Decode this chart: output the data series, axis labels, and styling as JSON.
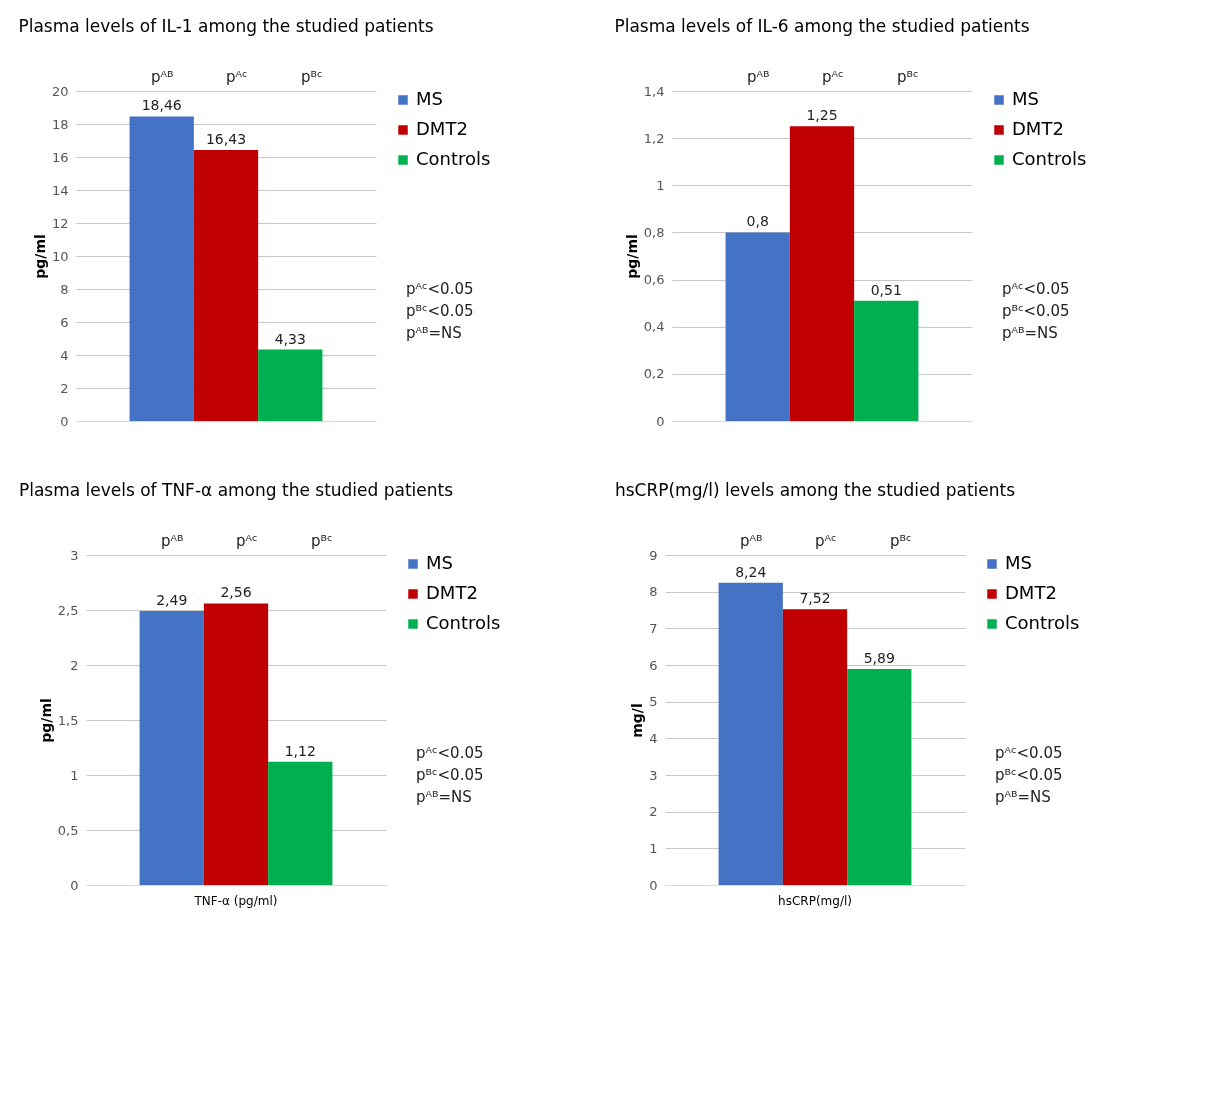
{
  "chart_data": [
    {
      "type": "bar",
      "title": "Plasma levels of IL-1 among the studied patients",
      "ylabel": "pg/ml",
      "categories": [
        null
      ],
      "series": [
        {
          "name": "MS",
          "color": "#4472c4",
          "values": [
            18.46
          ],
          "value_labels": [
            "18,46"
          ]
        },
        {
          "name": "DMT2",
          "color": "#c00000",
          "values": [
            16.43
          ],
          "value_labels": [
            "16,43"
          ]
        },
        {
          "name": "Controls",
          "color": "#00b050",
          "values": [
            4.33
          ],
          "value_labels": [
            "4,33"
          ]
        }
      ],
      "ylim": [
        0,
        20
      ],
      "yticks": [
        0,
        2,
        4,
        6,
        8,
        10,
        12,
        14,
        16,
        18,
        20
      ],
      "grid": "y",
      "legend": "right",
      "annotations": [
        "pᴬᴮ",
        "pᴬᶜ",
        "pᴮᶜ",
        "pᴬᶜ<0.05",
        "pᴮᶜ<0.05",
        "pᴬᴮ=NS"
      ]
    },
    {
      "type": "bar",
      "title": "Plasma levels of IL-6 among the studied patients",
      "ylabel": "pg/ml",
      "categories": [
        null
      ],
      "series": [
        {
          "name": "MS",
          "color": "#4472c4",
          "values": [
            0.8
          ],
          "value_labels": [
            "0,8"
          ]
        },
        {
          "name": "DMT2",
          "color": "#c00000",
          "values": [
            1.25
          ],
          "value_labels": [
            "1,25"
          ]
        },
        {
          "name": "Controls",
          "color": "#00b050",
          "values": [
            0.51
          ],
          "value_labels": [
            "0,51"
          ]
        }
      ],
      "ylim": [
        0,
        1.4
      ],
      "yticks": [
        0,
        {
          "value": 0.2,
          "label": "0,2"
        },
        {
          "value": 0.4,
          "label": "0,4"
        },
        {
          "value": 0.6,
          "label": "0,6"
        },
        {
          "value": 0.8,
          "label": "0,8"
        },
        1,
        {
          "value": 1.2,
          "label": "1,2"
        },
        {
          "value": 1.4,
          "label": "1,4"
        }
      ],
      "grid": "y",
      "legend": "right",
      "annotations": [
        "pᴬᴮ",
        "pᴬᶜ",
        "pᴮᶜ",
        "pᴬᶜ<0.05",
        "pᴮᶜ<0.05",
        "pᴬᴮ=NS"
      ]
    },
    {
      "type": "bar",
      "title": "Plasma levels of TNF-α among the studied patients",
      "ylabel": "pg/ml",
      "categories": [
        "TNF-α (pg/ml)"
      ],
      "series": [
        {
          "name": "MS",
          "color": "#4472c4",
          "values": [
            2.49
          ],
          "value_labels": [
            "2,49"
          ]
        },
        {
          "name": "DMT2",
          "color": "#c00000",
          "values": [
            2.56
          ],
          "value_labels": [
            "2,56"
          ]
        },
        {
          "name": "Controls",
          "color": "#00b050",
          "values": [
            1.12
          ],
          "value_labels": [
            "1,12"
          ]
        }
      ],
      "ylim": [
        0,
        3
      ],
      "yticks": [
        0,
        {
          "value": 0.5,
          "label": "0,5"
        },
        1,
        {
          "value": 1.5,
          "label": "1,5"
        },
        2,
        {
          "value": 2.5,
          "label": "2,5"
        },
        3
      ],
      "grid": "y",
      "legend": "right",
      "annotations": [
        "pᴬᴮ",
        "pᴬᶜ",
        "pᴮᶜ",
        "pᴬᶜ<0.05",
        "pᴮᶜ<0.05",
        "pᴬᴮ=NS"
      ]
    },
    {
      "type": "bar",
      "title": "hsCRP(mg/l) levels among the studied patients",
      "ylabel": "mg/l",
      "categories": [
        "hsCRP(mg/l)"
      ],
      "series": [
        {
          "name": "MS",
          "color": "#4472c4",
          "values": [
            8.24
          ],
          "value_labels": [
            "8,24"
          ]
        },
        {
          "name": "DMT2",
          "color": "#c00000",
          "values": [
            7.52
          ],
          "value_labels": [
            "7,52"
          ]
        },
        {
          "name": "Controls",
          "color": "#00b050",
          "values": [
            5.89
          ],
          "value_labels": [
            "5,89"
          ]
        }
      ],
      "ylim": [
        0,
        9
      ],
      "yticks": [
        0,
        1,
        2,
        3,
        4,
        5,
        6,
        7,
        8,
        9
      ],
      "grid": "y",
      "legend": "right",
      "annotations": [
        "pᴬᴮ",
        "pᴬᶜ",
        "pᴮᶜ",
        "pᴬᶜ<0.05",
        "pᴮᶜ<0.05",
        "pᴬᴮ=NS"
      ]
    }
  ]
}
